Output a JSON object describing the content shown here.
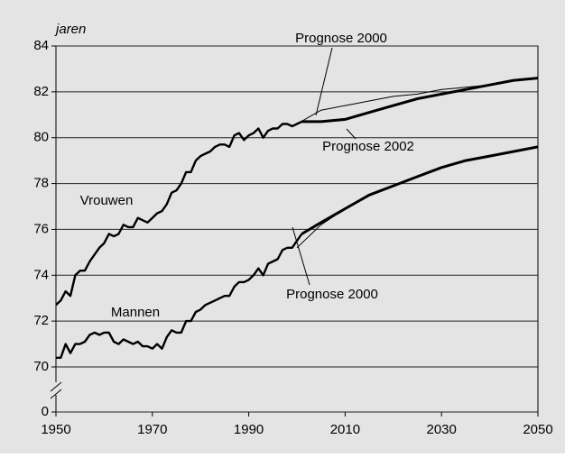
{
  "chart_data": {
    "type": "line",
    "ylabel": "jaren",
    "xlim": [
      1950,
      2050
    ],
    "xticks": [
      1950,
      1970,
      1990,
      2010,
      2030,
      2050
    ],
    "ylim": [
      0,
      84
    ],
    "ybreak": [
      0,
      70
    ],
    "yticks": [
      0,
      70,
      72,
      74,
      76,
      78,
      80,
      82,
      84
    ],
    "grid": true,
    "series": [
      {
        "name": "Vrouwen",
        "color": "#000000",
        "line_width": 2.4,
        "x": [
          1950,
          1951,
          1952,
          1953,
          1954,
          1955,
          1956,
          1957,
          1958,
          1959,
          1960,
          1961,
          1962,
          1963,
          1964,
          1965,
          1966,
          1967,
          1968,
          1969,
          1970,
          1971,
          1972,
          1973,
          1974,
          1975,
          1976,
          1977,
          1978,
          1979,
          1980,
          1981,
          1982,
          1983,
          1984,
          1985,
          1986,
          1987,
          1988,
          1989,
          1990,
          1991,
          1992,
          1993,
          1994,
          1995,
          1996,
          1997,
          1998,
          1999,
          2000,
          2001
        ],
        "values": [
          72.7,
          72.9,
          73.3,
          73.1,
          74.0,
          74.2,
          74.2,
          74.6,
          74.9,
          75.2,
          75.4,
          75.8,
          75.7,
          75.8,
          76.2,
          76.1,
          76.1,
          76.5,
          76.4,
          76.3,
          76.5,
          76.7,
          76.8,
          77.1,
          77.6,
          77.7,
          78.0,
          78.5,
          78.5,
          79.0,
          79.2,
          79.3,
          79.4,
          79.6,
          79.7,
          79.7,
          79.6,
          80.1,
          80.2,
          79.9,
          80.1,
          80.2,
          80.4,
          80.0,
          80.3,
          80.4,
          80.4,
          80.6,
          80.6,
          80.5,
          80.6,
          80.7
        ]
      },
      {
        "name": "Mannen",
        "color": "#000000",
        "line_width": 2.4,
        "x": [
          1950,
          1951,
          1952,
          1953,
          1954,
          1955,
          1956,
          1957,
          1958,
          1959,
          1960,
          1961,
          1962,
          1963,
          1964,
          1965,
          1966,
          1967,
          1968,
          1969,
          1970,
          1971,
          1972,
          1973,
          1974,
          1975,
          1976,
          1977,
          1978,
          1979,
          1980,
          1981,
          1982,
          1983,
          1984,
          1985,
          1986,
          1987,
          1988,
          1989,
          1990,
          1991,
          1992,
          1993,
          1994,
          1995,
          1996,
          1997,
          1998,
          1999,
          2000,
          2001
        ],
        "values": [
          70.4,
          70.4,
          71.0,
          70.6,
          71.0,
          71.0,
          71.1,
          71.4,
          71.5,
          71.4,
          71.5,
          71.5,
          71.1,
          71.0,
          71.2,
          71.1,
          71.0,
          71.1,
          70.9,
          70.9,
          70.8,
          71.0,
          70.8,
          71.3,
          71.6,
          71.5,
          71.5,
          72.0,
          72.0,
          72.4,
          72.5,
          72.7,
          72.8,
          72.9,
          73.0,
          73.1,
          73.1,
          73.5,
          73.7,
          73.7,
          73.8,
          74.0,
          74.3,
          74.0,
          74.5,
          74.6,
          74.7,
          75.1,
          75.2,
          75.2,
          75.5,
          75.8
        ]
      },
      {
        "name": "Prognose 2000",
        "color": "#000000",
        "line_width": 1,
        "x": [
          2000,
          2005,
          2010,
          2015,
          2020,
          2025,
          2030,
          2035,
          2040,
          2045,
          2050
        ],
        "values": [
          80.6,
          81.2,
          81.4,
          81.6,
          81.8,
          81.9,
          82.1,
          82.2,
          82.3,
          82.5,
          82.6
        ]
      },
      {
        "name": "Prognose 2002",
        "color": "#000000",
        "line_width": 3,
        "x": [
          2001,
          2005,
          2010,
          2015,
          2020,
          2025,
          2030,
          2035,
          2040,
          2045,
          2050
        ],
        "values": [
          80.7,
          80.7,
          80.8,
          81.1,
          81.4,
          81.7,
          81.9,
          82.1,
          82.3,
          82.5,
          82.6
        ]
      },
      {
        "name": "Prognose 2000",
        "color": "#000000",
        "line_width": 1,
        "x": [
          2000,
          2005,
          2010,
          2015,
          2020,
          2025,
          2030,
          2035,
          2040,
          2045,
          2050
        ],
        "values": [
          75.2,
          76.2,
          76.9,
          77.5,
          77.9,
          78.3,
          78.7,
          79.0,
          79.2,
          79.4,
          79.6
        ]
      },
      {
        "color": "#000000",
        "line_width": 3,
        "x": [
          2001,
          2005,
          2010,
          2015,
          2020,
          2025,
          2030,
          2035,
          2040,
          2045,
          2050
        ],
        "values": [
          75.8,
          76.3,
          76.9,
          77.5,
          77.9,
          78.3,
          78.7,
          79.0,
          79.2,
          79.4,
          79.6
        ]
      }
    ]
  }
}
